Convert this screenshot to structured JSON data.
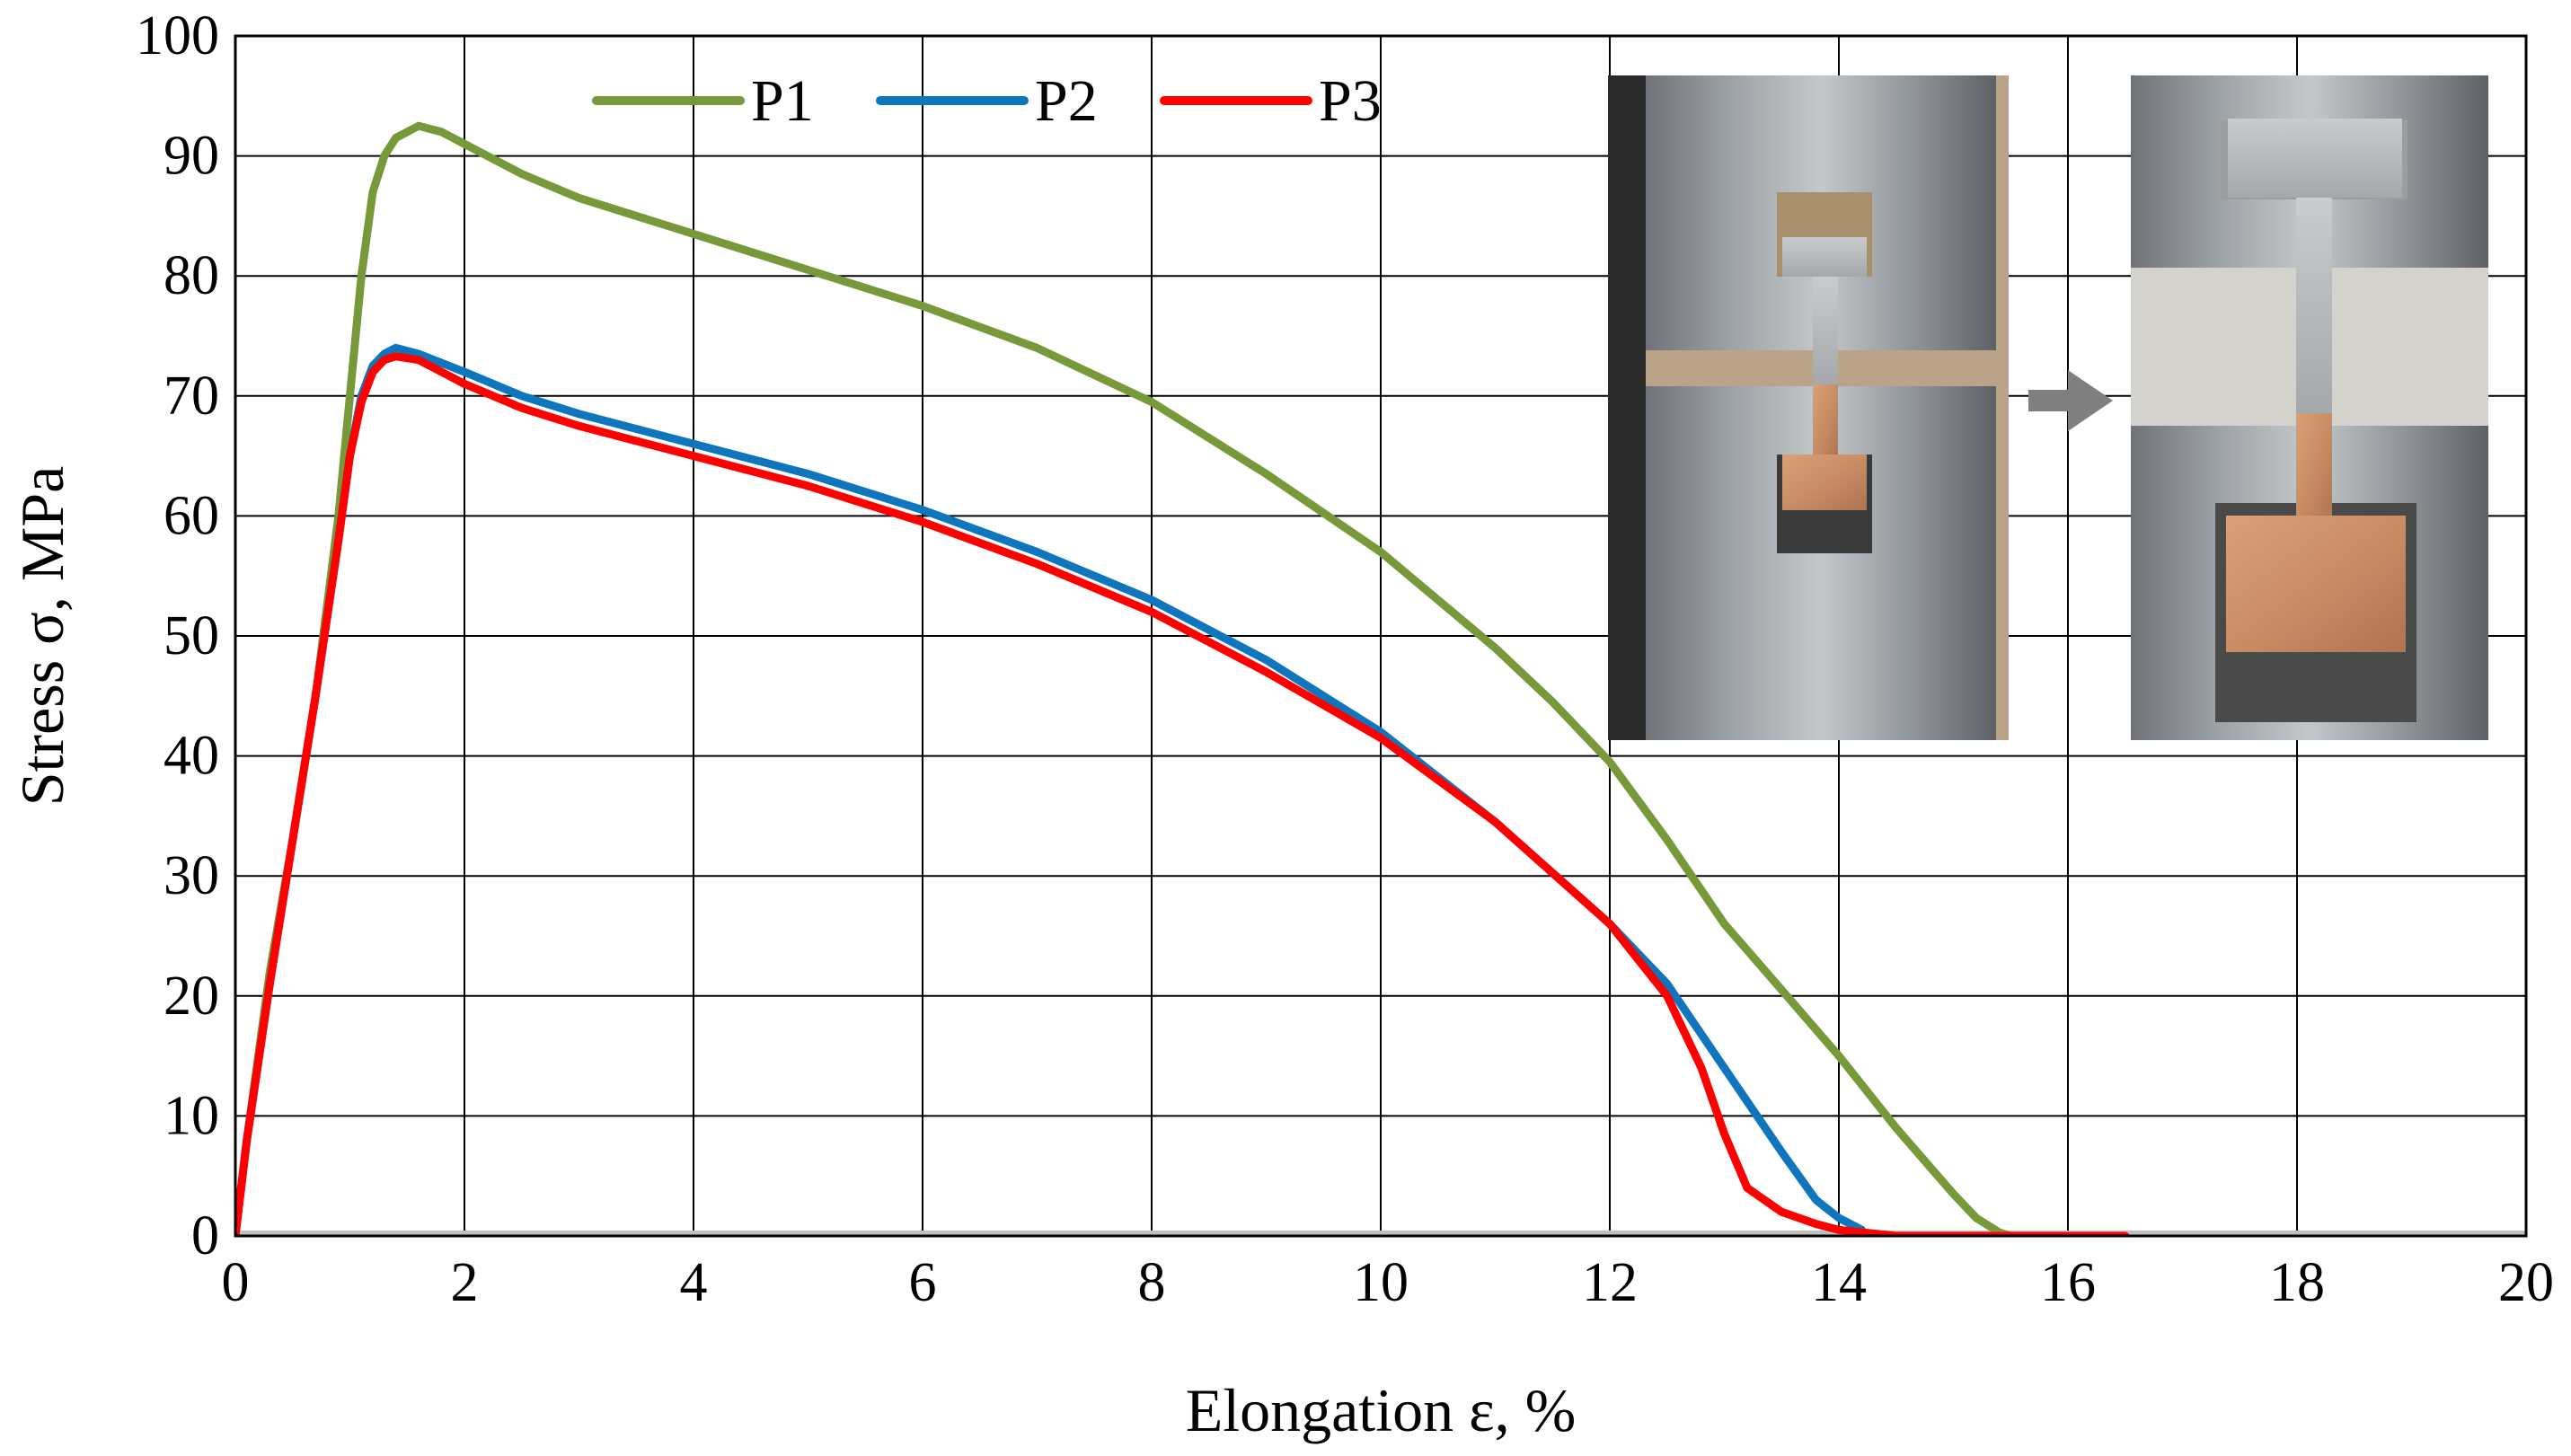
{
  "chart_data": {
    "type": "line",
    "title": "",
    "xlabel": "Elongation ε, %",
    "ylabel": "Stress σ, MPa",
    "xlim": [
      0,
      20
    ],
    "ylim": [
      0,
      100
    ],
    "xticks": [
      0,
      2,
      4,
      6,
      8,
      10,
      12,
      14,
      16,
      18,
      20
    ],
    "yticks": [
      0,
      10,
      20,
      30,
      40,
      50,
      60,
      70,
      80,
      90,
      100
    ],
    "grid": true,
    "legend_position": "top-center",
    "series": [
      {
        "name": "P1",
        "color": "#77993a",
        "x": [
          0,
          0.1,
          0.3,
          0.5,
          0.7,
          0.9,
          1.0,
          1.1,
          1.2,
          1.3,
          1.4,
          1.5,
          1.6,
          1.8,
          2.0,
          2.5,
          3.0,
          3.5,
          4.0,
          5.0,
          6.0,
          7.0,
          8.0,
          9.0,
          10.0,
          11.0,
          11.5,
          12.0,
          12.5,
          13.0,
          13.5,
          14.0,
          14.5,
          15.0,
          15.2,
          15.4,
          15.5
        ],
        "y": [
          0,
          8,
          22,
          33,
          45,
          60,
          70,
          80,
          87,
          90,
          91.5,
          92,
          92.5,
          92,
          91,
          88.5,
          86.5,
          85,
          83.5,
          80.5,
          77.5,
          74,
          69.5,
          63.5,
          57,
          49,
          44.5,
          39.5,
          33,
          26,
          20.5,
          15,
          9,
          3.5,
          1.5,
          0.3,
          0
        ]
      },
      {
        "name": "P2",
        "color": "#0f75bd",
        "x": [
          0,
          0.1,
          0.3,
          0.5,
          0.7,
          0.9,
          1.0,
          1.1,
          1.2,
          1.3,
          1.4,
          1.6,
          2.0,
          2.5,
          3.0,
          4.0,
          5.0,
          6.0,
          7.0,
          8.0,
          9.0,
          10.0,
          11.0,
          12.0,
          12.5,
          13.0,
          13.5,
          13.8,
          14.0,
          14.2
        ],
        "y": [
          0,
          8,
          21,
          33,
          45,
          58,
          65,
          70,
          72.5,
          73.5,
          74,
          73.5,
          72,
          70,
          68.5,
          66,
          63.5,
          60.5,
          57,
          53,
          48,
          42,
          34.5,
          26,
          21,
          14,
          7,
          3,
          1.5,
          0.5
        ]
      },
      {
        "name": "P3",
        "color": "#ff0000",
        "x": [
          0,
          0.1,
          0.3,
          0.5,
          0.7,
          0.9,
          1.0,
          1.1,
          1.2,
          1.3,
          1.4,
          1.6,
          2.0,
          2.5,
          3.0,
          4.0,
          5.0,
          6.0,
          7.0,
          8.0,
          9.0,
          10.0,
          11.0,
          12.0,
          12.5,
          12.8,
          13.0,
          13.2,
          13.5,
          13.8,
          14.0,
          14.3,
          14.5,
          15.0,
          16.0,
          16.5
        ],
        "y": [
          0,
          8,
          21,
          33,
          45,
          58,
          65,
          69.5,
          72,
          73,
          73.3,
          73,
          71,
          69,
          67.5,
          65,
          62.5,
          59.5,
          56,
          52,
          47,
          41.5,
          34.5,
          26,
          20,
          14,
          8.5,
          4,
          2,
          1,
          0.5,
          0.2,
          0,
          0,
          0,
          0
        ]
      }
    ]
  },
  "inset": {
    "arrow_color": "#7f7f7f"
  }
}
